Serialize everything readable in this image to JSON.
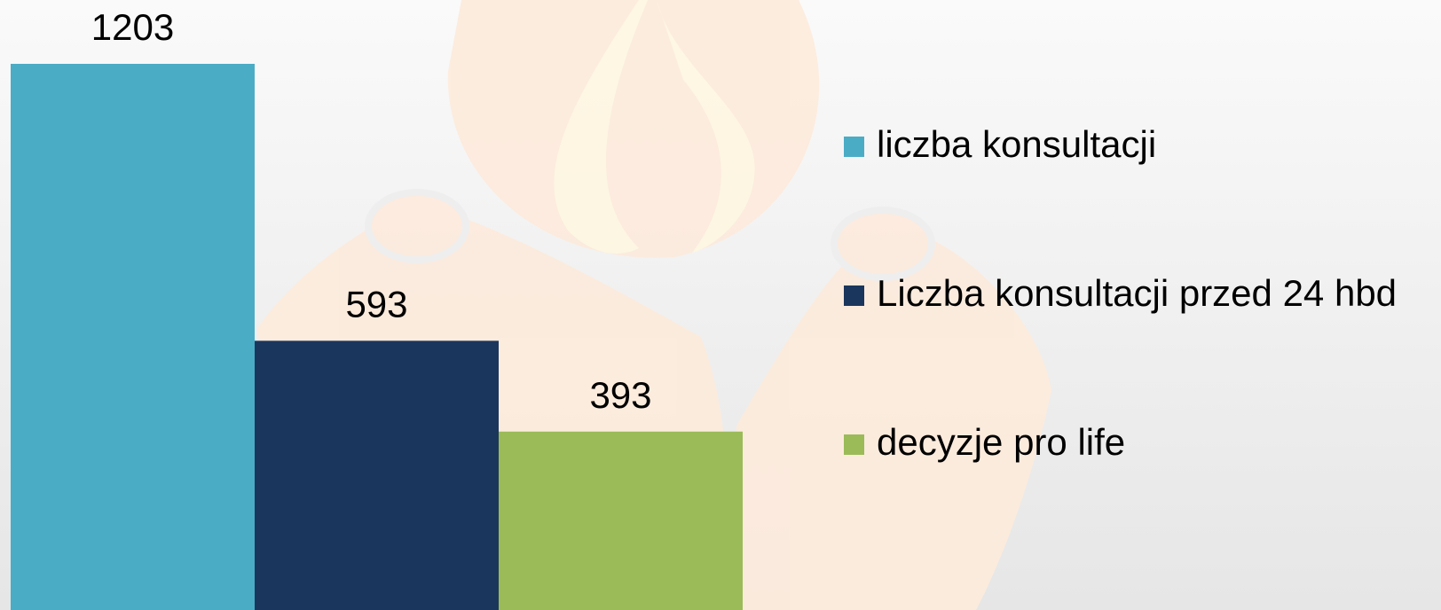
{
  "chart_data": {
    "type": "bar",
    "series": [
      {
        "name": "liczba konsultacji",
        "color": "#4bacc6",
        "values": [
          1203
        ]
      },
      {
        "name": "Liczba konsultacji przed 24 hbd",
        "color": "#1b365d",
        "values": [
          593
        ]
      },
      {
        "name": "decyzje pro life",
        "color": "#9bbb59",
        "values": [
          393
        ]
      }
    ],
    "legend": "right"
  }
}
